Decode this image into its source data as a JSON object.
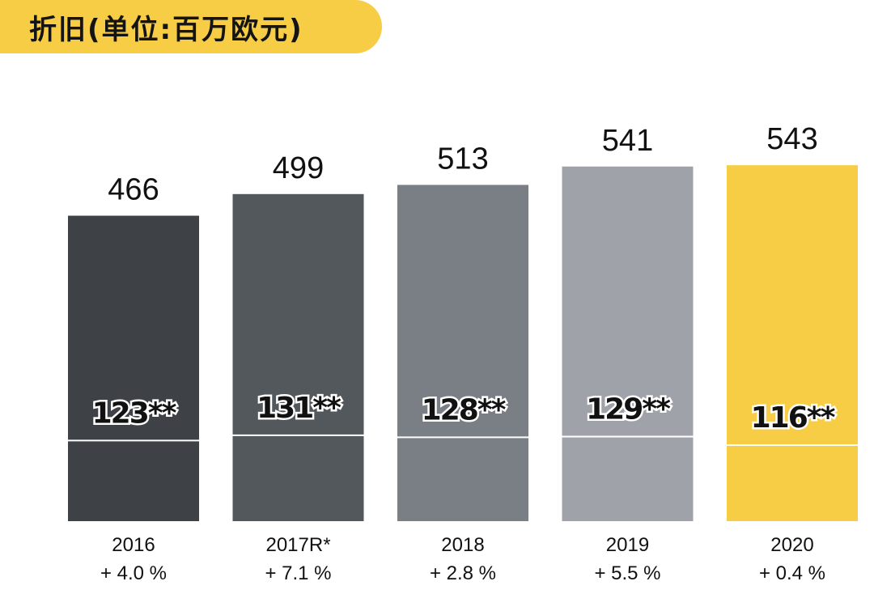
{
  "title": "折旧(单位:百万欧元)",
  "colors": {
    "title_bg": "#f7cd46",
    "bars": [
      "#3e4246",
      "#53585c",
      "#7a7f85",
      "#9fa3a9",
      "#f7cd46"
    ],
    "divider": "#ffffff"
  },
  "chart_data": {
    "type": "bar",
    "title": "折旧(单位:百万欧元)",
    "categories": [
      "2016",
      "2017R*",
      "2018",
      "2019",
      "2020"
    ],
    "values": [
      466,
      499,
      513,
      541,
      543
    ],
    "sub_values": [
      123,
      131,
      128,
      129,
      116
    ],
    "sub_labels": [
      "123**",
      "131**",
      "128**",
      "129**",
      "116**"
    ],
    "value_labels": [
      "466",
      "499",
      "513",
      "541",
      "543"
    ],
    "growth_labels": [
      "+ 4.0 %",
      "+ 7.1 %",
      "+ 2.8 %",
      "+ 5.5 %",
      "+ 0.4 %"
    ],
    "xlabel": "",
    "ylabel": "",
    "ylim": [
      0,
      543
    ],
    "grid": false,
    "legend": "none"
  }
}
